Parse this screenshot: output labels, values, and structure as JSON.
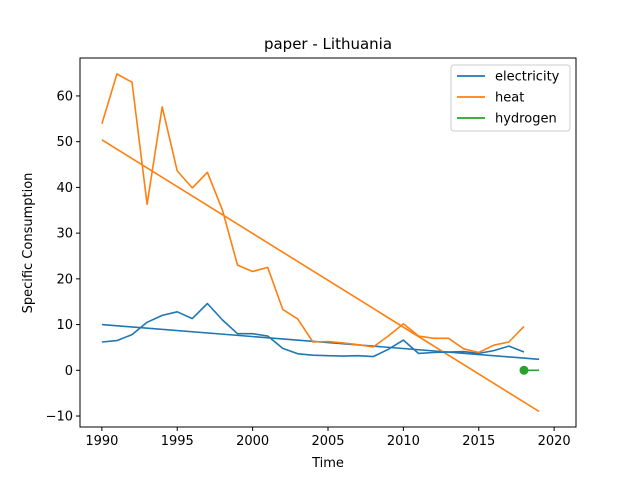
{
  "chart_data": {
    "type": "line",
    "title": "paper - Lithuania",
    "xlabel": "Time",
    "ylabel": "Specific Consumption",
    "xlim": [
      1988.55,
      2021.45
    ],
    "ylim": [
      -12.4,
      68.3
    ],
    "xticks": [
      1990,
      1995,
      2000,
      2005,
      2010,
      2015,
      2020
    ],
    "yticks": [
      -10,
      0,
      10,
      20,
      30,
      40,
      50,
      60
    ],
    "grid": false,
    "legend_position": "top-right",
    "series": [
      {
        "name": "electricity",
        "color": "#1f77b4",
        "x": [
          1990,
          1991,
          1992,
          1993,
          1994,
          1995,
          1996,
          1997,
          1998,
          1999,
          2000,
          2001,
          2002,
          2003,
          2004,
          2005,
          2006,
          2007,
          2008,
          2009,
          2010,
          2011,
          2012,
          2013,
          2014,
          2015,
          2016,
          2017,
          2018
        ],
        "y": [
          6.2,
          6.5,
          7.8,
          10.5,
          12.0,
          12.8,
          11.3,
          14.6,
          11.0,
          8.0,
          8.0,
          7.5,
          4.8,
          3.6,
          3.3,
          3.2,
          3.1,
          3.2,
          3.0,
          4.6,
          6.6,
          3.7,
          3.9,
          4.0,
          4.1,
          3.7,
          4.3,
          5.3,
          4.0
        ]
      },
      {
        "name": "heat",
        "color": "#ff7f0e",
        "x": [
          1990,
          1991,
          1992,
          1993,
          1994,
          1995,
          1996,
          1997,
          1998,
          1999,
          2000,
          2001,
          2002,
          2003,
          2004,
          2005,
          2006,
          2007,
          2008,
          2009,
          2010,
          2011,
          2012,
          2013,
          2014,
          2015,
          2016,
          2017,
          2018
        ],
        "y": [
          53.9,
          64.8,
          63.0,
          36.3,
          57.6,
          43.6,
          39.9,
          43.3,
          35.0,
          23.0,
          21.6,
          22.5,
          13.3,
          11.2,
          6.2,
          6.3,
          6.0,
          5.6,
          5.1,
          7.5,
          10.2,
          7.5,
          7.0,
          7.0,
          4.7,
          3.9,
          5.5,
          6.2,
          9.6
        ]
      },
      {
        "name": "hydrogen",
        "color": "#2ca02c",
        "x": [
          2018,
          2019
        ],
        "y": [
          0.0,
          0.0
        ],
        "marker_at_start": true
      }
    ],
    "trendlines": [
      {
        "series": "electricity",
        "color": "#1f77b4",
        "x": [
          1990,
          2019
        ],
        "y": [
          10.0,
          2.4
        ]
      },
      {
        "series": "heat",
        "color": "#ff7f0e",
        "x": [
          1990,
          2019
        ],
        "y": [
          50.4,
          -9.0
        ]
      }
    ]
  }
}
